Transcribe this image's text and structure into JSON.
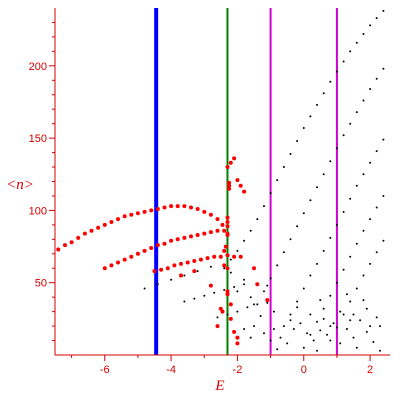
{
  "chart_data": {
    "type": "scatter",
    "title": "",
    "xlabel": "E",
    "ylabel": "<n>",
    "xlim": [
      -7.5,
      2.6
    ],
    "ylim": [
      0,
      240
    ],
    "xticks": [
      -6,
      -4,
      -2,
      0,
      2
    ],
    "yticks": [
      50,
      100,
      150,
      200
    ],
    "axis_color": "#d40000",
    "grid": false,
    "vertical_lines": [
      {
        "x": -4.45,
        "color": "#0000ff"
      },
      {
        "x": -2.3,
        "color": "#008000"
      },
      {
        "x": -1.0,
        "color": "#d400d4"
      },
      {
        "x": 1.0,
        "color": "#d400d4"
      }
    ],
    "series": [
      {
        "color": "#ff0000",
        "points": [
          [
            -7.4,
            73
          ],
          [
            -7.2,
            76
          ],
          [
            -7.0,
            78
          ],
          [
            -6.8,
            81
          ],
          [
            -6.6,
            84
          ],
          [
            -6.4,
            86
          ],
          [
            -6.2,
            88
          ],
          [
            -6.0,
            90
          ],
          [
            -5.8,
            92
          ],
          [
            -5.6,
            94
          ],
          [
            -5.4,
            96
          ],
          [
            -5.2,
            97
          ],
          [
            -5.0,
            98
          ],
          [
            -4.8,
            99
          ],
          [
            -4.6,
            100
          ],
          [
            -4.4,
            101
          ],
          [
            -4.2,
            102
          ],
          [
            -4.0,
            103
          ],
          [
            -3.8,
            103
          ],
          [
            -3.6,
            103
          ],
          [
            -3.4,
            102
          ],
          [
            -3.2,
            101
          ],
          [
            -3.0,
            99
          ],
          [
            -2.8,
            97
          ],
          [
            -2.6,
            94
          ],
          [
            -2.45,
            90
          ],
          [
            -6.0,
            60
          ],
          [
            -5.8,
            62
          ],
          [
            -5.6,
            64
          ],
          [
            -5.4,
            66
          ],
          [
            -5.2,
            68
          ],
          [
            -5.0,
            70
          ],
          [
            -4.8,
            72
          ],
          [
            -4.6,
            74
          ],
          [
            -4.4,
            76
          ],
          [
            -4.2,
            77
          ],
          [
            -4.0,
            79
          ],
          [
            -3.8,
            80
          ],
          [
            -3.6,
            81
          ],
          [
            -3.4,
            82
          ],
          [
            -3.2,
            83
          ],
          [
            -3.0,
            84
          ],
          [
            -2.8,
            85
          ],
          [
            -2.6,
            86
          ],
          [
            -2.4,
            86
          ],
          [
            -2.3,
            84
          ],
          [
            -4.5,
            58
          ],
          [
            -4.3,
            59
          ],
          [
            -4.1,
            60
          ],
          [
            -3.9,
            62
          ],
          [
            -3.7,
            63
          ],
          [
            -3.5,
            64
          ],
          [
            -3.3,
            65
          ],
          [
            -3.1,
            66
          ],
          [
            -2.9,
            67
          ],
          [
            -2.7,
            68
          ],
          [
            -2.5,
            68
          ],
          [
            -2.3,
            69
          ],
          [
            -2.1,
            68
          ],
          [
            -2.3,
            130
          ],
          [
            -2.2,
            133
          ],
          [
            -2.1,
            136
          ],
          [
            -2.0,
            121
          ],
          [
            -1.9,
            117
          ],
          [
            -1.8,
            113
          ],
          [
            -2.25,
            119
          ],
          [
            -2.25,
            117
          ],
          [
            -2.25,
            115
          ],
          [
            -2.3,
            95
          ],
          [
            -2.3,
            92
          ],
          [
            -2.3,
            89
          ],
          [
            -2.3,
            83
          ],
          [
            -2.35,
            75
          ],
          [
            -2.4,
            72
          ],
          [
            -2.3,
            60
          ],
          [
            -2.3,
            44
          ],
          [
            -2.3,
            42
          ],
          [
            -2.2,
            25
          ],
          [
            -2.1,
            16
          ],
          [
            -2.0,
            12
          ],
          [
            -3.7,
            55
          ],
          [
            -3.3,
            58
          ],
          [
            -2.8,
            48
          ],
          [
            -2.5,
            32
          ],
          [
            -2.45,
            30
          ],
          [
            -2.6,
            20
          ],
          [
            -2.2,
            35
          ],
          [
            -2.4,
            62
          ],
          [
            -2.0,
            8
          ],
          [
            -1.9,
            68
          ],
          [
            -1.5,
            60
          ],
          [
            -1.4,
            49
          ],
          [
            -1.1,
            38
          ]
        ]
      },
      {
        "color": "#000000",
        "points": [
          [
            -2.4,
            60
          ],
          [
            -2.2,
            66
          ],
          [
            -2.0,
            72
          ],
          [
            -1.8,
            79
          ],
          [
            -1.6,
            86
          ],
          [
            -1.4,
            94
          ],
          [
            -1.2,
            103
          ],
          [
            -1.0,
            112
          ],
          [
            -0.8,
            121
          ],
          [
            -0.6,
            130
          ],
          [
            -0.4,
            139
          ],
          [
            -0.2,
            148
          ],
          [
            0.0,
            157
          ],
          [
            0.2,
            165
          ],
          [
            0.4,
            173
          ],
          [
            0.6,
            181
          ],
          [
            0.8,
            189
          ],
          [
            1.0,
            196
          ],
          [
            1.2,
            203
          ],
          [
            1.4,
            210
          ],
          [
            1.6,
            216
          ],
          [
            1.8,
            222
          ],
          [
            2.0,
            228
          ],
          [
            2.2,
            233
          ],
          [
            2.4,
            238
          ],
          [
            -1.4,
            35
          ],
          [
            -1.2,
            44
          ],
          [
            -1.0,
            53
          ],
          [
            -0.8,
            62
          ],
          [
            -0.6,
            71
          ],
          [
            -0.4,
            80
          ],
          [
            -0.2,
            89
          ],
          [
            0.0,
            98
          ],
          [
            0.2,
            107
          ],
          [
            0.4,
            116
          ],
          [
            0.6,
            125
          ],
          [
            0.8,
            134
          ],
          [
            1.0,
            143
          ],
          [
            1.2,
            152
          ],
          [
            1.4,
            160
          ],
          [
            1.6,
            168
          ],
          [
            1.8,
            176
          ],
          [
            2.0,
            184
          ],
          [
            2.2,
            191
          ],
          [
            2.4,
            198
          ],
          [
            -0.6,
            20
          ],
          [
            -0.4,
            28
          ],
          [
            -0.2,
            37
          ],
          [
            0.0,
            46
          ],
          [
            0.2,
            55
          ],
          [
            0.4,
            63
          ],
          [
            0.6,
            72
          ],
          [
            0.8,
            81
          ],
          [
            1.0,
            90
          ],
          [
            1.2,
            99
          ],
          [
            1.4,
            108
          ],
          [
            1.6,
            117
          ],
          [
            1.8,
            125
          ],
          [
            2.0,
            133
          ],
          [
            2.2,
            141
          ],
          [
            2.4,
            149
          ],
          [
            0.0,
            5
          ],
          [
            0.2,
            14
          ],
          [
            0.4,
            23
          ],
          [
            0.6,
            32
          ],
          [
            0.8,
            41
          ],
          [
            1.0,
            50
          ],
          [
            1.2,
            59
          ],
          [
            1.4,
            68
          ],
          [
            1.6,
            77
          ],
          [
            1.8,
            86
          ],
          [
            2.0,
            94
          ],
          [
            2.2,
            102
          ],
          [
            2.4,
            110
          ],
          [
            0.8,
            10
          ],
          [
            1.0,
            19
          ],
          [
            1.2,
            28
          ],
          [
            1.4,
            37
          ],
          [
            1.6,
            46
          ],
          [
            1.8,
            55
          ],
          [
            2.0,
            63
          ],
          [
            2.2,
            71
          ],
          [
            2.4,
            79
          ],
          [
            -4.8,
            46
          ],
          [
            -4.4,
            49
          ],
          [
            -4.0,
            52
          ],
          [
            -3.6,
            55
          ],
          [
            -3.2,
            58
          ],
          [
            -2.8,
            61
          ],
          [
            -3.6,
            37
          ],
          [
            -3.3,
            39
          ],
          [
            -3.0,
            41
          ],
          [
            -2.7,
            43
          ],
          [
            -2.4,
            45
          ],
          [
            -2.1,
            47
          ],
          [
            -1.8,
            49
          ],
          [
            -2.6,
            26
          ],
          [
            -2.3,
            28
          ],
          [
            -2.0,
            30
          ],
          [
            -1.7,
            33
          ],
          [
            -1.5,
            35
          ],
          [
            -1.5,
            20
          ],
          [
            -1.2,
            15
          ],
          [
            -1.0,
            10
          ],
          [
            -0.7,
            12
          ],
          [
            -0.5,
            8
          ],
          [
            -0.3,
            18
          ],
          [
            0.1,
            15
          ],
          [
            0.3,
            10
          ],
          [
            0.5,
            17
          ],
          [
            0.7,
            14
          ],
          [
            0.9,
            22
          ],
          [
            1.1,
            8
          ],
          [
            1.3,
            18
          ],
          [
            1.5,
            12
          ],
          [
            1.7,
            24
          ],
          [
            1.9,
            16
          ],
          [
            2.1,
            9
          ],
          [
            2.3,
            20
          ],
          [
            -1.3,
            27
          ],
          [
            -0.9,
            30
          ],
          [
            -0.4,
            24
          ],
          [
            0.2,
            28
          ],
          [
            0.6,
            25
          ],
          [
            1.1,
            30
          ],
          [
            1.5,
            28
          ],
          [
            1.9,
            32
          ],
          [
            2.2,
            26
          ],
          [
            -1.8,
            18
          ],
          [
            -1.6,
            12
          ],
          [
            -0.8,
            4
          ],
          [
            0.4,
            3
          ],
          [
            1.6,
            5
          ],
          [
            2.3,
            3
          ],
          [
            -2.0,
            44
          ],
          [
            -1.6,
            40
          ],
          [
            -1.1,
            36
          ],
          [
            -0.2,
            33
          ],
          [
            0.5,
            38
          ],
          [
            1.3,
            42
          ],
          [
            1.8,
            38
          ],
          [
            -2.2,
            57
          ],
          [
            -1.8,
            52
          ],
          [
            -1.1,
            48
          ],
          [
            -0.9,
            18
          ],
          [
            -0.1,
            22
          ],
          [
            0.8,
            20
          ],
          [
            1.4,
            24
          ],
          [
            2.0,
            20
          ]
        ]
      }
    ]
  }
}
